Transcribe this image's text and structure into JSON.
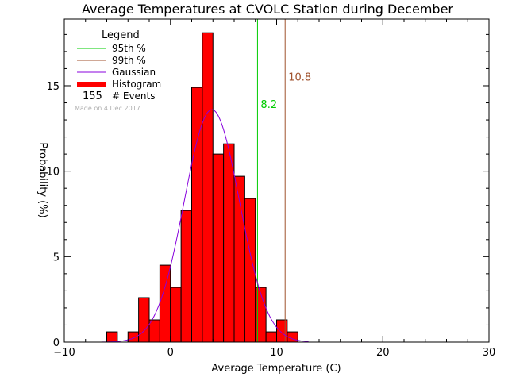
{
  "chart_data": {
    "type": "bar",
    "title": "Average Temperatures at CVOLC Station during December",
    "xlabel": "Average Temperature (C)",
    "ylabel": "Probability (%)",
    "xlim": [
      -10,
      30
    ],
    "ylim": [
      0,
      18.9
    ],
    "x_ticks": [
      -10,
      0,
      10,
      20,
      30
    ],
    "x_tick_labels": [
      "−10",
      "0",
      "10",
      "20",
      "30"
    ],
    "y_ticks": [
      0,
      5,
      10,
      15
    ],
    "y_tick_labels": [
      "0",
      "5",
      "10",
      "15"
    ],
    "grid": false,
    "histogram": {
      "bin_width": 1,
      "bins": [
        {
          "x0": -6,
          "value": 0.6
        },
        {
          "x0": -5,
          "value": 0
        },
        {
          "x0": -4,
          "value": 0.6
        },
        {
          "x0": -3,
          "value": 2.6
        },
        {
          "x0": -2,
          "value": 1.3
        },
        {
          "x0": -1,
          "value": 4.5
        },
        {
          "x0": 0,
          "value": 3.2
        },
        {
          "x0": 1,
          "value": 7.7
        },
        {
          "x0": 2,
          "value": 14.9
        },
        {
          "x0": 3,
          "value": 18.1
        },
        {
          "x0": 4,
          "value": 11.0
        },
        {
          "x0": 5,
          "value": 11.6
        },
        {
          "x0": 6,
          "value": 9.7
        },
        {
          "x0": 7,
          "value": 8.4
        },
        {
          "x0": 8,
          "value": 3.2
        },
        {
          "x0": 9,
          "value": 0.6
        },
        {
          "x0": 10,
          "value": 1.3
        },
        {
          "x0": 11,
          "value": 0.6
        }
      ]
    },
    "gaussian": {
      "mean": 3.9,
      "sigma": 2.6,
      "peak": 13.6,
      "x_range": [
        -6.5,
        13
      ]
    },
    "percentiles": [
      {
        "name": "95th %",
        "value": 8.2,
        "label": "8.2",
        "label_y": 13.7
      },
      {
        "name": "99th %",
        "value": 10.8,
        "label": "10.8",
        "label_y": 15.3
      }
    ],
    "legend": {
      "title": "Legend",
      "placement": "top-left",
      "entries": [
        "95th %",
        "99th %",
        "Gaussian",
        "Histogram"
      ],
      "events_count": "155",
      "events_label": "# Events",
      "made_on": "Made on 4 Dec 2017"
    },
    "colors": {
      "histogram_fill": "#ff0000",
      "histogram_edge": "#000000",
      "p95": "#00cc00",
      "p99": "#a0522d",
      "gaussian": "#8800dd",
      "made_on": "#b0b0b0"
    }
  }
}
